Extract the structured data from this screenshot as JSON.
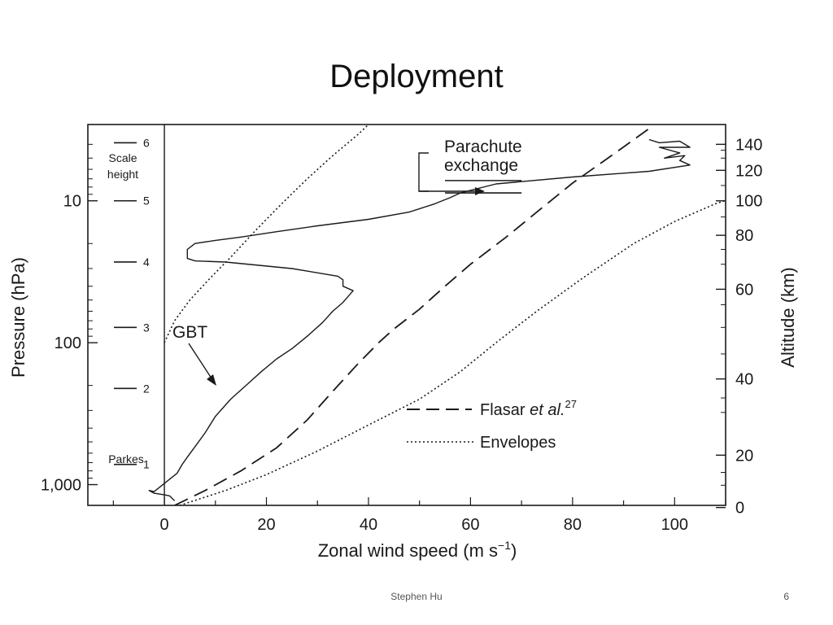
{
  "slide": {
    "title": "Deployment",
    "footer": "Stephen Hu",
    "page_number": "6"
  },
  "chart_data": {
    "type": "line",
    "xlabel": "Zonal wind speed (m s",
    "xlabel_sup": "−1",
    "xlabel_end": ")",
    "ylabel": "Pressure (hPa)",
    "y2label": "Altitude (km)",
    "xlim": [
      -15,
      110
    ],
    "x_ticks": [
      0,
      20,
      40,
      60,
      80,
      100
    ],
    "x_tick_labels": [
      "0",
      "20",
      "40",
      "60",
      "80",
      "100"
    ],
    "ylim_pressure": [
      1400,
      2.9
    ],
    "y_scale": "log",
    "y_ticks": [
      10,
      100,
      1000
    ],
    "y_tick_labels": [
      "10",
      "100",
      "1,000"
    ],
    "altitude_ticks": [
      {
        "label": "0",
        "pressure": 1450
      },
      {
        "label": "20",
        "pressure": 620
      },
      {
        "label": "40",
        "pressure": 180
      },
      {
        "label": "60",
        "pressure": 42
      },
      {
        "label": "80",
        "pressure": 17.5
      },
      {
        "label": "100",
        "pressure": 10
      },
      {
        "label": "120",
        "pressure": 6.1
      },
      {
        "label": "140",
        "pressure": 4.0
      }
    ],
    "scale_height": {
      "label_top": "Scale",
      "label_bottom": "height",
      "levels": [
        {
          "label": "1",
          "pressure": 720
        },
        {
          "label": "2",
          "pressure": 210
        },
        {
          "label": "3",
          "pressure": 78
        },
        {
          "label": "4",
          "pressure": 27
        },
        {
          "label": "5",
          "pressure": 10
        },
        {
          "label": "6",
          "pressure": 3.9
        }
      ]
    },
    "annotations": {
      "parachute": [
        "Parachute",
        "exchange"
      ],
      "parachute_pressure": [
        7.2,
        8.8
      ],
      "gbt": "GBT",
      "parkes": "Parkes"
    },
    "legend": {
      "position": "lower-right",
      "entries": [
        {
          "style": "dashed",
          "text": "Flasar",
          "text_italic": "et al.",
          "sup": "27"
        },
        {
          "style": "dotted",
          "text": "Envelopes"
        }
      ]
    },
    "series": [
      {
        "style": "solid",
        "points": [
          [
            2,
            1300
          ],
          [
            1,
            1200
          ],
          [
            0,
            1180
          ],
          [
            -2,
            1150
          ],
          [
            -3,
            1100
          ],
          [
            -2,
            1120
          ],
          [
            2.5,
            830
          ],
          [
            3.5,
            720
          ],
          [
            4.5,
            640
          ],
          [
            6,
            540
          ],
          [
            8,
            430
          ],
          [
            10,
            330
          ],
          [
            13,
            250
          ],
          [
            16,
            200
          ],
          [
            19,
            160
          ],
          [
            22,
            130
          ],
          [
            25,
            110
          ],
          [
            28,
            90
          ],
          [
            31,
            72
          ],
          [
            33,
            60
          ],
          [
            35,
            52
          ],
          [
            37,
            43
          ],
          [
            35,
            40
          ],
          [
            35,
            36
          ],
          [
            34,
            34
          ],
          [
            25,
            30
          ],
          [
            12,
            27
          ],
          [
            6,
            26.5
          ],
          [
            4.5,
            25.5
          ],
          [
            4.5,
            22
          ],
          [
            6,
            20
          ],
          [
            10,
            19
          ],
          [
            15,
            18
          ],
          [
            22,
            16.5
          ],
          [
            30,
            15
          ],
          [
            40,
            13.5
          ],
          [
            48,
            12
          ],
          [
            53,
            10.5
          ],
          [
            56,
            9.5
          ],
          [
            58,
            8.8
          ],
          [
            65,
            7.6
          ],
          [
            80,
            6.8
          ],
          [
            95,
            6.2
          ],
          [
            103,
            5.6
          ],
          [
            101,
            5.2
          ],
          [
            102,
            4.8
          ],
          [
            98,
            5.0
          ],
          [
            101,
            4.6
          ],
          [
            97,
            4.2
          ],
          [
            103,
            4.2
          ],
          [
            101,
            3.8
          ],
          [
            97,
            3.9
          ],
          [
            95,
            3.7
          ]
        ]
      },
      {
        "style": "dashed",
        "points": [
          [
            2,
            1400
          ],
          [
            8,
            1100
          ],
          [
            15,
            800
          ],
          [
            22,
            550
          ],
          [
            28,
            350
          ],
          [
            33,
            220
          ],
          [
            38,
            140
          ],
          [
            42,
            100
          ],
          [
            45,
            80
          ],
          [
            50,
            58
          ],
          [
            55,
            40
          ],
          [
            60,
            28
          ],
          [
            67,
            18
          ],
          [
            73,
            12
          ],
          [
            80,
            7.5
          ],
          [
            88,
            4.7
          ],
          [
            95,
            3.1
          ]
        ]
      },
      {
        "style": "dotted",
        "points": [
          [
            0,
            100
          ],
          [
            2,
            70
          ],
          [
            5,
            50
          ],
          [
            9,
            35
          ],
          [
            13,
            25
          ],
          [
            18,
            16
          ],
          [
            23,
            10.5
          ],
          [
            28,
            7
          ],
          [
            33,
            4.8
          ],
          [
            38,
            3.4
          ],
          [
            40,
            2.9
          ]
        ]
      },
      {
        "style": "dotted",
        "points": [
          [
            3,
            1400
          ],
          [
            12,
            1100
          ],
          [
            20,
            850
          ],
          [
            30,
            580
          ],
          [
            40,
            380
          ],
          [
            50,
            250
          ],
          [
            58,
            160
          ],
          [
            65,
            100
          ],
          [
            73,
            60
          ],
          [
            82,
            35
          ],
          [
            92,
            20
          ],
          [
            100,
            14
          ],
          [
            108,
            10.5
          ],
          [
            111,
            9.7
          ]
        ]
      }
    ]
  }
}
